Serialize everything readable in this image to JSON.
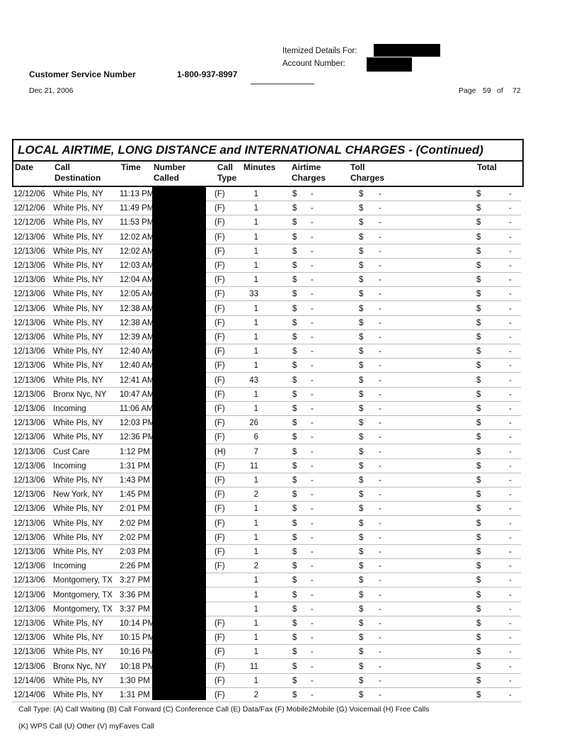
{
  "header": {
    "itemized_label": "Itemized Details For:",
    "account_label": "Account Number:",
    "cs_label": "Customer Service Number",
    "cs_number": "1-800-937-8997",
    "date": "Dec 21, 2006",
    "page_label": "Page",
    "page_num": "59",
    "page_of": "of",
    "page_total": "72"
  },
  "table": {
    "title": "LOCAL AIRTIME, LONG DISTANCE and INTERNATIONAL CHARGES  - (Continued)",
    "columns": [
      "Date",
      "Call\nDestination",
      "Time",
      "Number\nCalled",
      "Call\nType",
      "Minutes",
      "Airtime\nCharges",
      "Toll\nCharges",
      "Total"
    ],
    "rows": [
      [
        "12/12/06",
        "White Pls, NY",
        "11:13 PM",
        "(F)",
        "1"
      ],
      [
        "12/12/06",
        "White Pls, NY",
        "11:49 PM",
        "(F)",
        "1"
      ],
      [
        "12/12/06",
        "White Pls, NY",
        "11:53 PM",
        "(F)",
        "1"
      ],
      [
        "12/13/06",
        "White Pls, NY",
        "12:02 AM",
        "(F)",
        "1"
      ],
      [
        "12/13/06",
        "White Pls, NY",
        "12:02 AM",
        "(F)",
        "1"
      ],
      [
        "12/13/06",
        "White Pls, NY",
        "12:03 AM",
        "(F)",
        "1"
      ],
      [
        "12/13/06",
        "White Pls, NY",
        "12:04 AM",
        "(F)",
        "1"
      ],
      [
        "12/13/06",
        "White Pls, NY",
        "12:05 AM",
        "(F)",
        "33"
      ],
      [
        "12/13/06",
        "White Pls, NY",
        "12:38 AM",
        "(F)",
        "1"
      ],
      [
        "12/13/06",
        "White Pls, NY",
        "12:38 AM",
        "(F)",
        "1"
      ],
      [
        "12/13/06",
        "White Pls, NY",
        "12:39 AM",
        "(F)",
        "1"
      ],
      [
        "12/13/06",
        "White Pls, NY",
        "12:40 AM",
        "(F)",
        "1"
      ],
      [
        "12/13/06",
        "White Pls, NY",
        "12:40 AM",
        "(F)",
        "1"
      ],
      [
        "12/13/06",
        "White Pls, NY",
        "12:41 AM",
        "(F)",
        "43"
      ],
      [
        "12/13/06",
        "Bronx Nyc, NY",
        "10:47 AM",
        "(F)",
        "1"
      ],
      [
        "12/13/06",
        "Incoming",
        "11:06 AM",
        "(F)",
        "1"
      ],
      [
        "12/13/06",
        "White Pls, NY",
        "12:03 PM",
        "(F)",
        "26"
      ],
      [
        "12/13/06",
        "White Pls, NY",
        "12:36 PM",
        "(F)",
        "6"
      ],
      [
        "12/13/06",
        "Cust Care",
        "1:12 PM",
        "(H)",
        "7"
      ],
      [
        "12/13/06",
        "Incoming",
        "1:31 PM",
        "(F)",
        "11"
      ],
      [
        "12/13/06",
        "White Pls, NY",
        "1:43 PM",
        "(F)",
        "1"
      ],
      [
        "12/13/06",
        "New York, NY",
        "1:45 PM",
        "(F)",
        "2"
      ],
      [
        "12/13/06",
        "White Pls, NY",
        "2:01 PM",
        "(F)",
        "1"
      ],
      [
        "12/13/06",
        "White Pls, NY",
        "2:02 PM",
        "(F)",
        "1"
      ],
      [
        "12/13/06",
        "White Pls, NY",
        "2:02 PM",
        "(F)",
        "1"
      ],
      [
        "12/13/06",
        "White Pls, NY",
        "2:03 PM",
        "(F)",
        "1"
      ],
      [
        "12/13/06",
        "Incoming",
        "2:26 PM",
        "(F)",
        "2"
      ],
      [
        "12/13/06",
        "Montgomery, TX",
        "3:27 PM",
        "",
        "1"
      ],
      [
        "12/13/06",
        "Montgomery, TX",
        "3:36 PM",
        "",
        "1"
      ],
      [
        "12/13/06",
        "Montgomery, TX",
        "3:37 PM",
        "",
        "1"
      ],
      [
        "12/13/06",
        "White Pls, NY",
        "10:14 PM",
        "(F)",
        "1"
      ],
      [
        "12/13/06",
        "White Pls, NY",
        "10:15 PM",
        "(F)",
        "1"
      ],
      [
        "12/13/06",
        "White Pls, NY",
        "10:16 PM",
        "(F)",
        "1"
      ],
      [
        "12/13/06",
        "Bronx Nyc, NY",
        "10:18 PM",
        "(F)",
        "11"
      ],
      [
        "12/14/06",
        "White Pls, NY",
        "1:30 PM",
        "(F)",
        "1"
      ],
      [
        "12/14/06",
        "White Pls, NY",
        "1:31 PM",
        "(F)",
        "2"
      ]
    ],
    "currency": "$",
    "dash": "-"
  },
  "footer": {
    "line1": "Call Type: (A) Call Waiting (B) Call Forward (C) Conference Call (E) Data/Fax (F) Mobile2Mobile (G) Voicemail (H) Free Calls",
    "line2": "(K) WPS Call (U) Other (V) myFaves Call"
  }
}
